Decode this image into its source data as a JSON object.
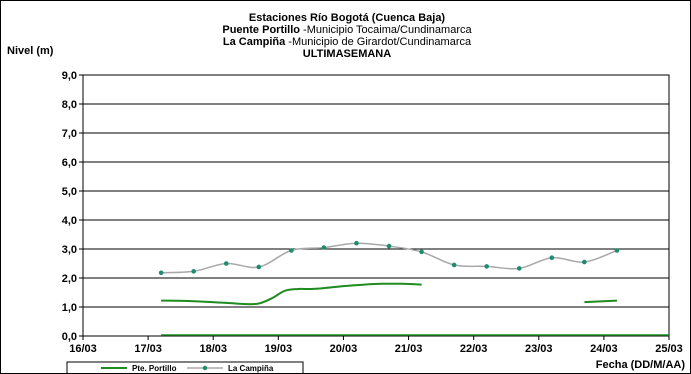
{
  "chart_data": {
    "type": "line",
    "title": {
      "line1": "Estaciones Río Bogotá (Cuenca Baja)",
      "line2_bold": "Puente Portillo",
      "line2_rest": " -Municipio Tocaima/Cundinamarca",
      "line3_bold": "La Campiña",
      "line3_rest": " -Municipio de Girardot/Cundinamarca",
      "line4": "ULTIMASEMANA"
    },
    "ylabel": "Nivel (m)",
    "xlabel": "Fecha (DD/M/AA)",
    "ylim": [
      0,
      9
    ],
    "xlim": [
      0,
      9
    ],
    "y_ticks": [
      "0,0",
      "1,0",
      "2,0",
      "3,0",
      "4,0",
      "5,0",
      "6,0",
      "7,0",
      "8,0",
      "9,0"
    ],
    "x_ticks": [
      "16/03",
      "17/03",
      "18/03",
      "19/03",
      "20/03",
      "21/03",
      "22/03",
      "23/03",
      "24/03",
      "25/03"
    ],
    "grid": true,
    "legend_position": "bottom-left",
    "series": [
      {
        "name": "Pte. Portillo",
        "color": "#1e8c1e",
        "markers": false,
        "segments": [
          [
            [
              1.2,
              1.22
            ],
            [
              1.7,
              1.2
            ],
            [
              2.2,
              1.14
            ],
            [
              2.5,
              1.1
            ],
            [
              2.7,
              1.12
            ],
            [
              2.9,
              1.3
            ],
            [
              3.1,
              1.56
            ],
            [
              3.3,
              1.62
            ],
            [
              3.5,
              1.62
            ],
            [
              3.7,
              1.65
            ],
            [
              4.0,
              1.72
            ],
            [
              4.3,
              1.77
            ],
            [
              4.6,
              1.8
            ],
            [
              4.9,
              1.8
            ],
            [
              5.2,
              1.77
            ]
          ],
          [
            [
              7.7,
              1.17
            ],
            [
              8.2,
              1.22
            ]
          ]
        ],
        "baseline": [
          [
            1.2,
            0.0
          ],
          [
            9.0,
            0.0
          ]
        ]
      },
      {
        "name": "La Campiña",
        "color": "#a8a8a8",
        "marker_color": "#1e8c6e",
        "markers": true,
        "points": [
          [
            1.2,
            2.18
          ],
          [
            1.7,
            2.23
          ],
          [
            2.2,
            2.5
          ],
          [
            2.7,
            2.38
          ],
          [
            3.2,
            2.95
          ],
          [
            3.7,
            3.05
          ],
          [
            4.2,
            3.2
          ],
          [
            4.7,
            3.1
          ],
          [
            5.2,
            2.9
          ],
          [
            5.7,
            2.45
          ],
          [
            6.2,
            2.4
          ],
          [
            6.7,
            2.33
          ],
          [
            7.2,
            2.7
          ],
          [
            7.7,
            2.55
          ],
          [
            8.2,
            2.95
          ]
        ]
      }
    ]
  }
}
